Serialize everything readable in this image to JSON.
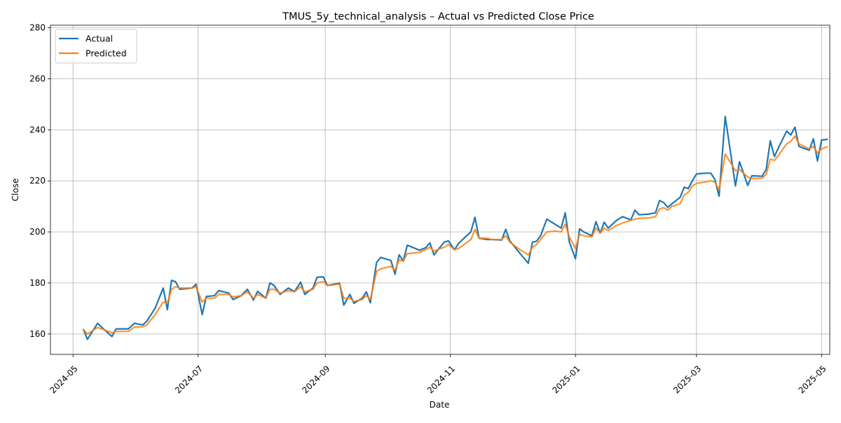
{
  "chart_data": {
    "type": "line",
    "title": "TMUS_5y_technical_analysis – Actual vs Predicted Close Price",
    "xlabel": "Date",
    "ylabel": "Close",
    "xlim": [
      "2024-04-20",
      "2025-05-05"
    ],
    "ylim": [
      152,
      281
    ],
    "x_ticks": [
      "2024-05",
      "2024-07",
      "2024-09",
      "2024-11",
      "2025-01",
      "2025-03",
      "2025-05"
    ],
    "y_ticks": [
      160,
      180,
      200,
      220,
      240,
      260,
      280
    ],
    "grid": true,
    "legend_position": "top-left",
    "colors": {
      "Actual": "#1f77b4",
      "Predicted": "#ff7f0e"
    },
    "series": [
      {
        "name": "Actual",
        "points": [
          [
            "2024-05-06",
            162.0
          ],
          [
            "2024-05-08",
            157.9
          ],
          [
            "2024-05-13",
            164.2
          ],
          [
            "2024-05-15",
            162.6
          ],
          [
            "2024-05-20",
            159.0
          ],
          [
            "2024-05-22",
            162.0
          ],
          [
            "2024-05-28",
            162.0
          ],
          [
            "2024-05-31",
            164.2
          ],
          [
            "2024-06-04",
            163.5
          ],
          [
            "2024-06-06",
            165.0
          ],
          [
            "2024-06-10",
            170.0
          ],
          [
            "2024-06-14",
            178.0
          ],
          [
            "2024-06-16",
            169.5
          ],
          [
            "2024-06-18",
            181.0
          ],
          [
            "2024-06-20",
            180.5
          ],
          [
            "2024-06-22",
            177.5
          ],
          [
            "2024-06-28",
            178.0
          ],
          [
            "2024-06-30",
            179.5
          ],
          [
            "2024-07-03",
            167.6
          ],
          [
            "2024-07-05",
            174.7
          ],
          [
            "2024-07-09",
            175.0
          ],
          [
            "2024-07-11",
            177.0
          ],
          [
            "2024-07-16",
            176.0
          ],
          [
            "2024-07-18",
            173.5
          ],
          [
            "2024-07-22",
            175.0
          ],
          [
            "2024-07-25",
            177.5
          ],
          [
            "2024-07-28",
            173.3
          ],
          [
            "2024-07-30",
            176.7
          ],
          [
            "2024-08-03",
            174.0
          ],
          [
            "2024-08-05",
            180.0
          ],
          [
            "2024-08-07",
            179.0
          ],
          [
            "2024-08-10",
            175.5
          ],
          [
            "2024-08-14",
            178.0
          ],
          [
            "2024-08-17",
            176.6
          ],
          [
            "2024-08-20",
            180.3
          ],
          [
            "2024-08-22",
            175.5
          ],
          [
            "2024-08-26",
            178.0
          ],
          [
            "2024-08-28",
            182.2
          ],
          [
            "2024-08-31",
            182.4
          ],
          [
            "2024-09-02",
            179.0
          ],
          [
            "2024-09-08",
            179.9
          ],
          [
            "2024-09-10",
            171.3
          ],
          [
            "2024-09-13",
            175.5
          ],
          [
            "2024-09-15",
            172.0
          ],
          [
            "2024-09-19",
            174.0
          ],
          [
            "2024-09-21",
            176.5
          ],
          [
            "2024-09-23",
            172.2
          ],
          [
            "2024-09-26",
            188.0
          ],
          [
            "2024-09-28",
            190.0
          ],
          [
            "2024-10-03",
            188.8
          ],
          [
            "2024-10-05",
            183.4
          ],
          [
            "2024-10-07",
            191.0
          ],
          [
            "2024-10-09",
            188.6
          ],
          [
            "2024-10-11",
            194.8
          ],
          [
            "2024-10-17",
            192.8
          ],
          [
            "2024-10-20",
            193.8
          ],
          [
            "2024-10-22",
            195.7
          ],
          [
            "2024-10-24",
            191.0
          ],
          [
            "2024-10-29",
            196.0
          ],
          [
            "2024-10-31",
            196.5
          ],
          [
            "2024-11-03",
            193.0
          ],
          [
            "2024-11-05",
            195.5
          ],
          [
            "2024-11-11",
            200.0
          ],
          [
            "2024-11-13",
            205.7
          ],
          [
            "2024-11-15",
            197.5
          ],
          [
            "2024-11-19",
            197.0
          ],
          [
            "2024-11-21",
            197.0
          ],
          [
            "2024-11-26",
            196.8
          ],
          [
            "2024-11-28",
            201.0
          ],
          [
            "2024-11-30",
            196.5
          ],
          [
            "2024-12-05",
            191.5
          ],
          [
            "2024-12-09",
            187.7
          ],
          [
            "2024-12-11",
            196.0
          ],
          [
            "2024-12-13",
            196.3
          ],
          [
            "2024-12-15",
            198.5
          ],
          [
            "2024-12-18",
            205.0
          ],
          [
            "2024-12-22",
            203.0
          ],
          [
            "2024-12-25",
            201.5
          ],
          [
            "2024-12-27",
            207.5
          ],
          [
            "2024-12-29",
            196.0
          ],
          [
            "2025-01-01",
            189.5
          ],
          [
            "2025-01-03",
            201.2
          ],
          [
            "2025-01-05",
            200.0
          ],
          [
            "2025-01-09",
            198.5
          ],
          [
            "2025-01-11",
            204.0
          ],
          [
            "2025-01-13",
            199.5
          ],
          [
            "2025-01-15",
            203.8
          ],
          [
            "2025-01-17",
            201.5
          ],
          [
            "2025-01-21",
            204.5
          ],
          [
            "2025-01-24",
            206.0
          ],
          [
            "2025-01-28",
            204.7
          ],
          [
            "2025-01-30",
            208.5
          ],
          [
            "2025-02-01",
            206.7
          ],
          [
            "2025-02-06",
            207.0
          ],
          [
            "2025-02-09",
            207.5
          ],
          [
            "2025-02-11",
            212.3
          ],
          [
            "2025-02-13",
            211.5
          ],
          [
            "2025-02-15",
            209.6
          ],
          [
            "2025-02-17",
            211.0
          ],
          [
            "2025-02-21",
            213.5
          ],
          [
            "2025-02-23",
            217.5
          ],
          [
            "2025-02-25",
            217.0
          ],
          [
            "2025-02-27",
            220.0
          ],
          [
            "2025-03-01",
            222.7
          ],
          [
            "2025-03-05",
            223.0
          ],
          [
            "2025-03-08",
            223.0
          ],
          [
            "2025-03-10",
            220.5
          ],
          [
            "2025-03-12",
            214.0
          ],
          [
            "2025-03-15",
            245.2
          ],
          [
            "2025-03-20",
            218.0
          ],
          [
            "2025-03-22",
            227.5
          ],
          [
            "2025-03-26",
            218.2
          ],
          [
            "2025-03-28",
            222.0
          ],
          [
            "2025-04-02",
            221.8
          ],
          [
            "2025-04-04",
            224.5
          ],
          [
            "2025-04-06",
            235.7
          ],
          [
            "2025-04-08",
            229.5
          ],
          [
            "2025-04-10",
            233.0
          ],
          [
            "2025-04-14",
            239.5
          ],
          [
            "2025-04-16",
            238.0
          ],
          [
            "2025-04-18",
            241.0
          ],
          [
            "2025-04-20",
            233.5
          ],
          [
            "2025-04-25",
            232.0
          ],
          [
            "2025-04-27",
            236.5
          ],
          [
            "2025-04-29",
            227.8
          ],
          [
            "2025-05-01",
            236.0
          ],
          [
            "2025-05-04",
            236.3
          ]
        ]
      },
      {
        "name": "Predicted",
        "points": [
          [
            "2024-05-06",
            161.8
          ],
          [
            "2024-05-08",
            160.0
          ],
          [
            "2024-05-13",
            162.5
          ],
          [
            "2024-05-15",
            162.0
          ],
          [
            "2024-05-20",
            160.5
          ],
          [
            "2024-05-22",
            161.0
          ],
          [
            "2024-05-28",
            161.0
          ],
          [
            "2024-05-31",
            162.7
          ],
          [
            "2024-06-04",
            162.8
          ],
          [
            "2024-06-06",
            163.5
          ],
          [
            "2024-06-10",
            167.5
          ],
          [
            "2024-06-14",
            172.5
          ],
          [
            "2024-06-16",
            172.0
          ],
          [
            "2024-06-18",
            177.5
          ],
          [
            "2024-06-20",
            178.5
          ],
          [
            "2024-06-22",
            178.0
          ],
          [
            "2024-06-28",
            178.0
          ],
          [
            "2024-06-30",
            178.5
          ],
          [
            "2024-07-03",
            172.5
          ],
          [
            "2024-07-05",
            174.0
          ],
          [
            "2024-07-09",
            174.0
          ],
          [
            "2024-07-11",
            175.5
          ],
          [
            "2024-07-16",
            175.5
          ],
          [
            "2024-07-18",
            174.5
          ],
          [
            "2024-07-22",
            175.0
          ],
          [
            "2024-07-25",
            176.5
          ],
          [
            "2024-07-28",
            174.0
          ],
          [
            "2024-07-30",
            175.5
          ],
          [
            "2024-08-03",
            174.0
          ],
          [
            "2024-08-05",
            177.5
          ],
          [
            "2024-08-07",
            177.5
          ],
          [
            "2024-08-10",
            176.0
          ],
          [
            "2024-08-14",
            177.0
          ],
          [
            "2024-08-17",
            176.5
          ],
          [
            "2024-08-20",
            178.5
          ],
          [
            "2024-08-22",
            176.5
          ],
          [
            "2024-08-26",
            177.5
          ],
          [
            "2024-08-28",
            180.0
          ],
          [
            "2024-08-31",
            180.5
          ],
          [
            "2024-09-02",
            179.0
          ],
          [
            "2024-09-08",
            179.5
          ],
          [
            "2024-09-10",
            174.0
          ],
          [
            "2024-09-13",
            174.0
          ],
          [
            "2024-09-15",
            172.8
          ],
          [
            "2024-09-19",
            173.5
          ],
          [
            "2024-09-21",
            175.0
          ],
          [
            "2024-09-23",
            173.5
          ],
          [
            "2024-09-26",
            184.5
          ],
          [
            "2024-09-28",
            185.5
          ],
          [
            "2024-10-03",
            186.5
          ],
          [
            "2024-10-05",
            185.0
          ],
          [
            "2024-10-07",
            189.0
          ],
          [
            "2024-10-09",
            188.5
          ],
          [
            "2024-10-11",
            191.5
          ],
          [
            "2024-10-17",
            192.0
          ],
          [
            "2024-10-20",
            193.0
          ],
          [
            "2024-10-22",
            194.0
          ],
          [
            "2024-10-24",
            192.5
          ],
          [
            "2024-10-29",
            194.0
          ],
          [
            "2024-10-31",
            195.0
          ],
          [
            "2024-11-03",
            193.0
          ],
          [
            "2024-11-05",
            193.5
          ],
          [
            "2024-11-11",
            197.0
          ],
          [
            "2024-11-13",
            201.0
          ],
          [
            "2024-11-15",
            197.5
          ],
          [
            "2024-11-19",
            197.5
          ],
          [
            "2024-11-21",
            197.0
          ],
          [
            "2024-11-26",
            197.0
          ],
          [
            "2024-11-28",
            198.5
          ],
          [
            "2024-11-30",
            196.0
          ],
          [
            "2024-12-05",
            193.0
          ],
          [
            "2024-12-09",
            191.0
          ],
          [
            "2024-12-11",
            194.0
          ],
          [
            "2024-12-13",
            195.0
          ],
          [
            "2024-12-15",
            197.0
          ],
          [
            "2024-12-18",
            200.0
          ],
          [
            "2024-12-22",
            200.3
          ],
          [
            "2024-12-25",
            200.0
          ],
          [
            "2024-12-27",
            203.0
          ],
          [
            "2024-12-29",
            198.0
          ],
          [
            "2025-01-01",
            193.5
          ],
          [
            "2025-01-03",
            199.0
          ],
          [
            "2025-01-05",
            198.5
          ],
          [
            "2025-01-09",
            198.0
          ],
          [
            "2025-01-11",
            201.5
          ],
          [
            "2025-01-13",
            199.5
          ],
          [
            "2025-01-15",
            201.5
          ],
          [
            "2025-01-17",
            200.5
          ],
          [
            "2025-01-21",
            202.5
          ],
          [
            "2025-01-24",
            203.5
          ],
          [
            "2025-01-28",
            204.5
          ],
          [
            "2025-01-30",
            205.0
          ],
          [
            "2025-02-01",
            205.3
          ],
          [
            "2025-02-06",
            205.5
          ],
          [
            "2025-02-09",
            206.0
          ],
          [
            "2025-02-11",
            209.0
          ],
          [
            "2025-02-13",
            209.5
          ],
          [
            "2025-02-15",
            208.5
          ],
          [
            "2025-02-17",
            210.0
          ],
          [
            "2025-02-21",
            211.0
          ],
          [
            "2025-02-23",
            214.5
          ],
          [
            "2025-02-25",
            215.5
          ],
          [
            "2025-02-27",
            218.0
          ],
          [
            "2025-03-01",
            219.0
          ],
          [
            "2025-03-05",
            219.5
          ],
          [
            "2025-03-08",
            220.0
          ],
          [
            "2025-03-10",
            219.5
          ],
          [
            "2025-03-12",
            216.5
          ],
          [
            "2025-03-15",
            230.5
          ],
          [
            "2025-03-20",
            224.0
          ],
          [
            "2025-03-22",
            224.5
          ],
          [
            "2025-03-26",
            221.5
          ],
          [
            "2025-03-28",
            221.0
          ],
          [
            "2025-04-02",
            221.0
          ],
          [
            "2025-04-04",
            222.5
          ],
          [
            "2025-04-06",
            228.5
          ],
          [
            "2025-04-08",
            228.0
          ],
          [
            "2025-04-10",
            230.0
          ],
          [
            "2025-04-14",
            234.5
          ],
          [
            "2025-04-16",
            235.5
          ],
          [
            "2025-04-18",
            237.5
          ],
          [
            "2025-04-20",
            234.5
          ],
          [
            "2025-04-25",
            232.5
          ],
          [
            "2025-04-27",
            233.5
          ],
          [
            "2025-04-29",
            231.0
          ],
          [
            "2025-05-01",
            232.5
          ],
          [
            "2025-05-04",
            233.5
          ]
        ]
      }
    ]
  }
}
